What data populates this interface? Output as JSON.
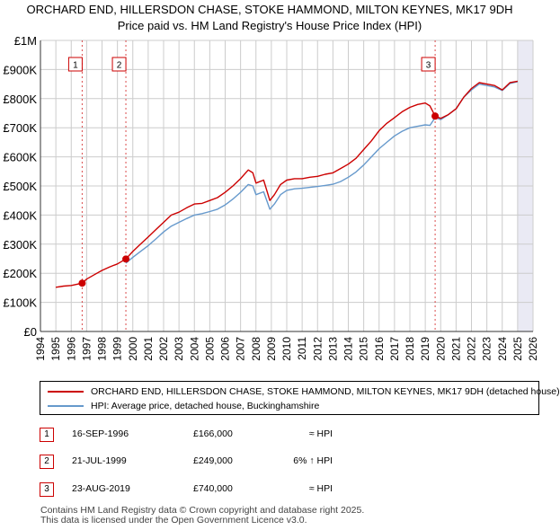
{
  "chart_data": {
    "type": "line",
    "title": "ORCHARD END, HILLERSDON CHASE, STOKE HAMMOND, MILTON KEYNES, MK17 9DH",
    "subtitle": "Price paid vs. HM Land Registry's House Price Index (HPI)",
    "xlim": [
      1994,
      2026
    ],
    "ylim": [
      0,
      1000000
    ],
    "x_ticks": [
      "1994",
      "1995",
      "1996",
      "1997",
      "1998",
      "1999",
      "2000",
      "2001",
      "2002",
      "2003",
      "2004",
      "2005",
      "2006",
      "2007",
      "2008",
      "2009",
      "2010",
      "2011",
      "2012",
      "2013",
      "2014",
      "2015",
      "2016",
      "2017",
      "2018",
      "2019",
      "2020",
      "2021",
      "2022",
      "2023",
      "2024",
      "2025",
      "2026"
    ],
    "y_ticks": [
      {
        "value": 0,
        "label": "£0"
      },
      {
        "value": 100000,
        "label": "£100K"
      },
      {
        "value": 200000,
        "label": "£200K"
      },
      {
        "value": 300000,
        "label": "£300K"
      },
      {
        "value": 400000,
        "label": "£400K"
      },
      {
        "value": 500000,
        "label": "£500K"
      },
      {
        "value": 600000,
        "label": "£600K"
      },
      {
        "value": 700000,
        "label": "£700K"
      },
      {
        "value": 800000,
        "label": "£800K"
      },
      {
        "value": 900000,
        "label": "£900K"
      },
      {
        "value": 1000000,
        "label": "£1M"
      }
    ],
    "grid": true,
    "series": [
      {
        "name": "ORCHARD END, HILLERSDON CHASE, STOKE HAMMOND, MILTON KEYNES, MK17 9DH (detached house)",
        "color": "#cc0000",
        "x": [
          1995.0,
          1995.5,
          1996.0,
          1996.71,
          1997.0,
          1997.5,
          1998.0,
          1998.5,
          1999.0,
          1999.55,
          2000.0,
          2000.5,
          2001.0,
          2001.5,
          2002.0,
          2002.5,
          2003.0,
          2003.5,
          2004.0,
          2004.5,
          2005.0,
          2005.5,
          2006.0,
          2006.5,
          2007.0,
          2007.5,
          2007.8,
          2008.0,
          2008.5,
          2008.9,
          2009.2,
          2009.6,
          2010.0,
          2010.5,
          2011.0,
          2011.5,
          2012.0,
          2012.5,
          2013.0,
          2013.5,
          2014.0,
          2014.5,
          2015.0,
          2015.5,
          2016.0,
          2016.5,
          2017.0,
          2017.5,
          2018.0,
          2018.5,
          2019.0,
          2019.3,
          2019.64,
          2020.0,
          2020.5,
          2021.0,
          2021.5,
          2022.0,
          2022.5,
          2023.0,
          2023.5,
          2024.0,
          2024.5,
          2025.0
        ],
        "values": [
          152000,
          156000,
          158000,
          166000,
          180000,
          195000,
          210000,
          222000,
          232000,
          249000,
          275000,
          300000,
          325000,
          350000,
          375000,
          400000,
          410000,
          425000,
          438000,
          440000,
          450000,
          460000,
          478000,
          500000,
          525000,
          555000,
          545000,
          510000,
          520000,
          450000,
          470000,
          505000,
          520000,
          525000,
          525000,
          530000,
          533000,
          540000,
          545000,
          560000,
          575000,
          595000,
          625000,
          655000,
          690000,
          715000,
          735000,
          755000,
          770000,
          780000,
          785000,
          775000,
          740000,
          732000,
          745000,
          765000,
          805000,
          835000,
          855000,
          850000,
          845000,
          830000,
          855000,
          860000
        ]
      },
      {
        "name": "HPI: Average price, detached house, Buckinghamshire",
        "color": "#6699cc",
        "x": [
          1999.55,
          2000.0,
          2000.5,
          2001.0,
          2001.5,
          2002.0,
          2002.5,
          2003.0,
          2003.5,
          2004.0,
          2004.5,
          2005.0,
          2005.5,
          2006.0,
          2006.5,
          2007.0,
          2007.5,
          2007.8,
          2008.0,
          2008.5,
          2008.9,
          2009.2,
          2009.6,
          2010.0,
          2010.5,
          2011.0,
          2011.5,
          2012.0,
          2012.5,
          2013.0,
          2013.5,
          2014.0,
          2014.5,
          2015.0,
          2015.5,
          2016.0,
          2016.5,
          2017.0,
          2017.5,
          2018.0,
          2018.5,
          2019.0,
          2019.3,
          2019.64,
          2020.0,
          2020.5,
          2021.0,
          2021.5,
          2022.0,
          2022.5,
          2023.0,
          2023.5,
          2024.0,
          2024.5,
          2025.0
        ],
        "values": [
          235000,
          255000,
          275000,
          295000,
          318000,
          342000,
          362000,
          375000,
          388000,
          400000,
          405000,
          412000,
          420000,
          435000,
          455000,
          478000,
          505000,
          500000,
          470000,
          480000,
          420000,
          438000,
          470000,
          485000,
          490000,
          492000,
          495000,
          498000,
          502000,
          506000,
          515000,
          530000,
          548000,
          572000,
          600000,
          628000,
          650000,
          672000,
          688000,
          700000,
          705000,
          710000,
          708000,
          735000,
          728000,
          745000,
          765000,
          805000,
          830000,
          850000,
          845000,
          840000,
          828000,
          852000,
          858000
        ]
      }
    ],
    "sales": [
      {
        "label": "1",
        "x": 1996.71,
        "value": 166000,
        "date": "16-SEP-1996",
        "price": "£166,000",
        "hpi": "≈ HPI"
      },
      {
        "label": "2",
        "x": 1999.55,
        "value": 249000,
        "date": "21-JUL-1999",
        "price": "£249,000",
        "hpi": "6% ↑ HPI"
      },
      {
        "label": "3",
        "x": 2019.64,
        "value": 740000,
        "date": "23-AUG-2019",
        "price": "£740,000",
        "hpi": "≈ HPI"
      }
    ],
    "legend": "below"
  },
  "colors": {
    "red": "#cc0000",
    "blue": "#6699cc",
    "grid": "#cccccc",
    "plot_bg": "#ffffff",
    "shade": "#eaeaf4"
  },
  "footer": {
    "line1": "Contains HM Land Registry data © Crown copyright and database right 2025.",
    "line2": "This data is licensed under the Open Government Licence v3.0."
  }
}
